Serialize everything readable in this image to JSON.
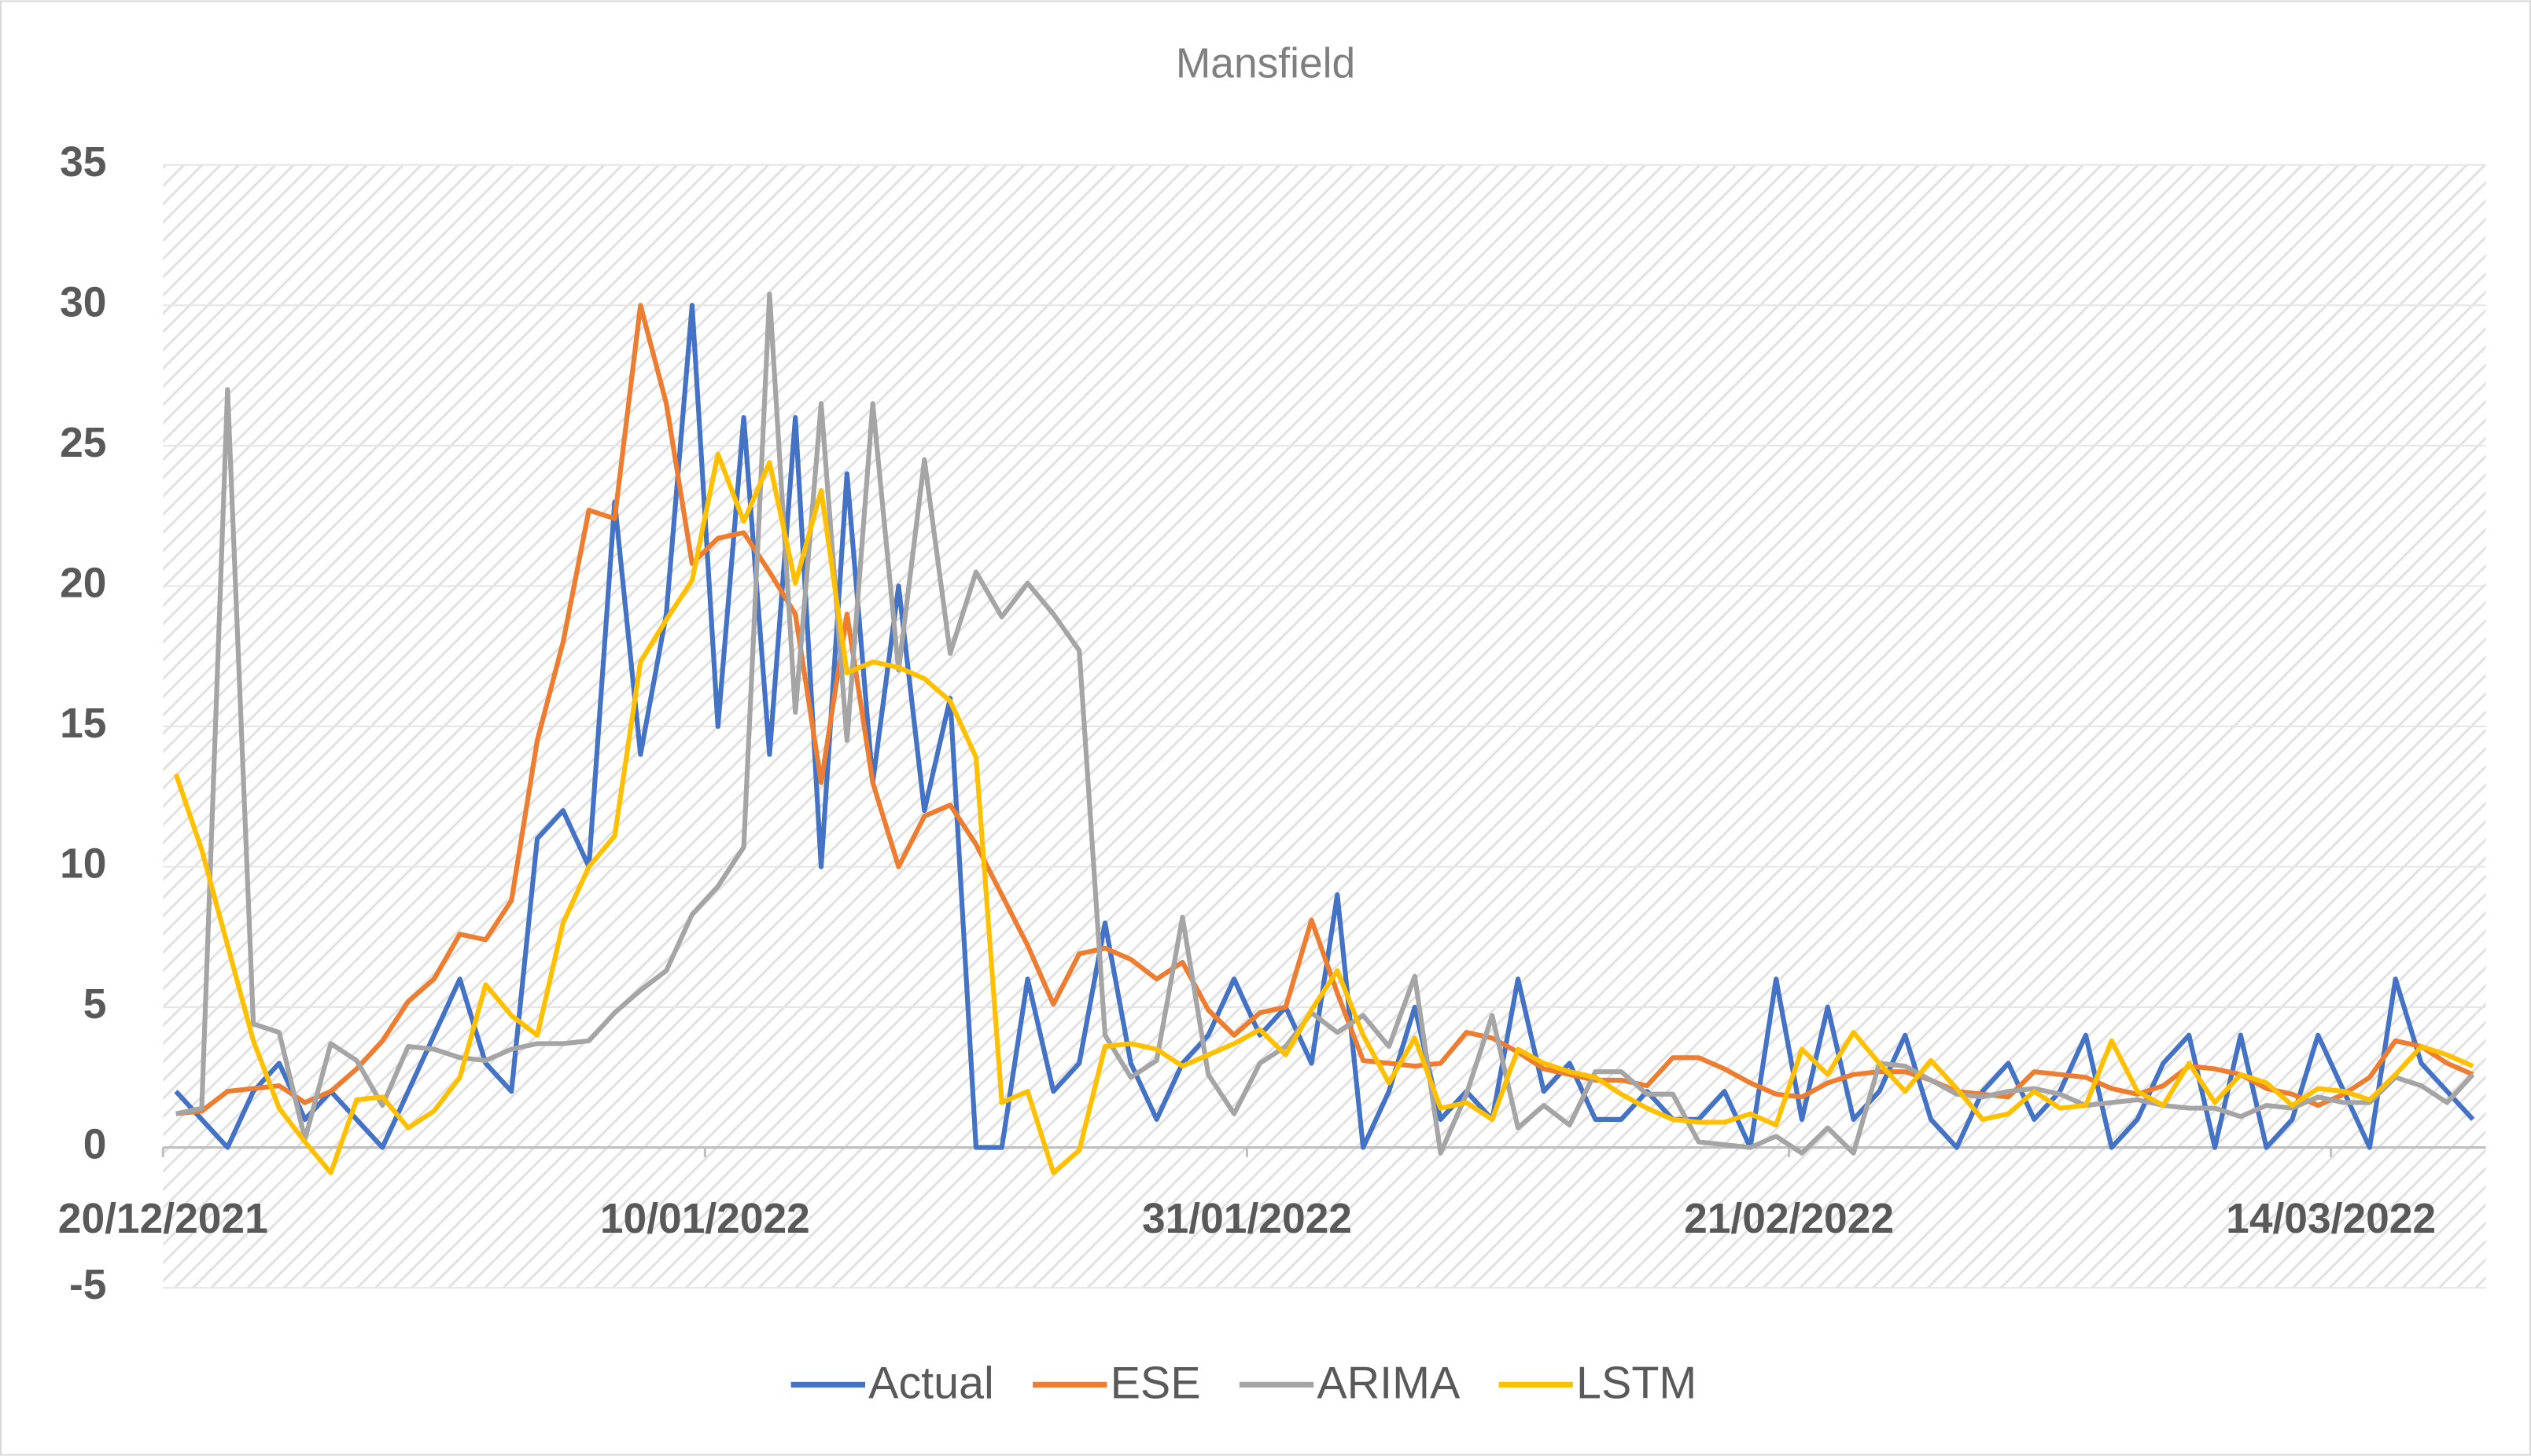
{
  "chart_data": {
    "type": "line",
    "title": "Mansfield",
    "categories": [
      "20/12/2021",
      null,
      null,
      null,
      null,
      null,
      null,
      null,
      null,
      null,
      null,
      null,
      null,
      null,
      null,
      null,
      null,
      null,
      null,
      null,
      null,
      "10/01/2022",
      null,
      null,
      null,
      null,
      null,
      null,
      null,
      null,
      null,
      null,
      null,
      null,
      null,
      null,
      null,
      null,
      null,
      null,
      null,
      null,
      "31/01/2022",
      null,
      null,
      null,
      null,
      null,
      null,
      null,
      null,
      null,
      null,
      null,
      null,
      null,
      null,
      null,
      null,
      null,
      null,
      null,
      null,
      "21/02/2022",
      null,
      null,
      null,
      null,
      null,
      null,
      null,
      null,
      null,
      null,
      null,
      null,
      null,
      null,
      null,
      null,
      null,
      null,
      null,
      null,
      "14/03/2022",
      null,
      null,
      null,
      null,
      null
    ],
    "series": [
      {
        "name": "Actual",
        "color": "#4472c4",
        "values": [
          2,
          1,
          0,
          2,
          3,
          1,
          2,
          1,
          0,
          2,
          4,
          6,
          3,
          2,
          11,
          12,
          10,
          23,
          14,
          19,
          30,
          15,
          26,
          14,
          26,
          10,
          24,
          13,
          20,
          12,
          16,
          0,
          0,
          6,
          2,
          3,
          8,
          3,
          1,
          3,
          4,
          6,
          4,
          5,
          3,
          9,
          0,
          2,
          5,
          1,
          2,
          1,
          6,
          2,
          3,
          1,
          1,
          2,
          1,
          1,
          2,
          0,
          6,
          1,
          5,
          1,
          2,
          4,
          1,
          0,
          2,
          3,
          1,
          2,
          4,
          0,
          1,
          3,
          4,
          0,
          4,
          0,
          1,
          4,
          2,
          0,
          6,
          3,
          2,
          1
        ]
      },
      {
        "name": "ESE",
        "color": "#ed7d31",
        "values": [
          1.2,
          1.3,
          2,
          2.1,
          2.2,
          1.6,
          2,
          2.8,
          3.8,
          5.2,
          6,
          7.6,
          7.4,
          8.8,
          14.5,
          18,
          22.7,
          22.4,
          30,
          26.5,
          20.8,
          21.7,
          21.9,
          20.5,
          19,
          13,
          19,
          13,
          10,
          11.8,
          12.2,
          10.8,
          9,
          7.2,
          5.1,
          6.9,
          7.1,
          6.7,
          6,
          6.6,
          4.9,
          4,
          4.8,
          5,
          8.1,
          5.5,
          3.1,
          3,
          2.9,
          3,
          4.1,
          3.9,
          3.4,
          2.8,
          2.6,
          2.4,
          2.4,
          2.2,
          3.2,
          3.2,
          2.8,
          2.3,
          1.9,
          1.8,
          2.3,
          2.6,
          2.7,
          2.7,
          2.4,
          2,
          1.9,
          1.8,
          2.7,
          2.6,
          2.5,
          2.1,
          1.9,
          2.2,
          2.9,
          2.8,
          2.6,
          2.1,
          1.9,
          1.5,
          1.9,
          2.5,
          3.8,
          3.6,
          3,
          2.6
        ]
      },
      {
        "name": "ARIMA",
        "color": "#a5a5a5",
        "values": [
          1.2,
          1.4,
          27,
          4.4,
          4.1,
          0.3,
          3.7,
          3.1,
          1.5,
          3.6,
          3.5,
          3.2,
          3.1,
          3.5,
          3.7,
          3.7,
          3.8,
          4.8,
          5.6,
          6.3,
          8.3,
          9.3,
          10.7,
          30.4,
          15.5,
          26.5,
          14.5,
          26.5,
          17,
          24.5,
          17.6,
          20.5,
          18.9,
          20.1,
          19,
          17.7,
          4,
          2.5,
          3.1,
          8.2,
          2.6,
          1.2,
          3,
          3.6,
          4.8,
          4.1,
          4.7,
          3.6,
          6.1,
          -0.2,
          1.9,
          4.7,
          0.7,
          1.5,
          0.8,
          2.7,
          2.7,
          1.9,
          1.9,
          0.2,
          0.1,
          0,
          0.4,
          -0.2,
          0.7,
          -0.2,
          3,
          2.9,
          2.4,
          1.9,
          1.8,
          2,
          2.1,
          1.9,
          1.5,
          1.6,
          1.7,
          1.5,
          1.4,
          1.4,
          1.1,
          1.5,
          1.4,
          1.8,
          1.6,
          1.6,
          2.5,
          2.2,
          1.6,
          2.6
        ]
      },
      {
        "name": "LSTM",
        "color": "#ffc000",
        "values": [
          13.3,
          10.6,
          7.2,
          3.8,
          1.4,
          0.2,
          -0.9,
          1.7,
          1.8,
          0.7,
          1.3,
          2.5,
          5.8,
          4.7,
          4,
          8,
          10,
          11.1,
          17.3,
          18.8,
          20.2,
          24.7,
          22.3,
          24.4,
          20.1,
          23.4,
          16.9,
          17.3,
          17.1,
          16.7,
          15.9,
          13.9,
          1.6,
          2,
          -0.9,
          -0.1,
          3.6,
          3.7,
          3.5,
          2.9,
          3.3,
          3.7,
          4.2,
          3.3,
          4.9,
          6.3,
          4,
          2.3,
          3.9,
          1.4,
          1.6,
          1,
          3.5,
          3,
          2.7,
          2.5,
          1.9,
          1.4,
          1,
          0.9,
          0.9,
          1.2,
          0.8,
          3.5,
          2.6,
          4.1,
          3,
          2,
          3.1,
          2.1,
          1,
          1.2,
          2,
          1.4,
          1.5,
          3.8,
          2,
          1.5,
          3,
          1.6,
          2.6,
          2.3,
          1.5,
          2.1,
          2,
          1.7,
          2.6,
          3.6,
          3.3,
          2.9
        ]
      }
    ],
    "ylim": [
      -5,
      35
    ],
    "yticks": [
      -5,
      0,
      5,
      10,
      15,
      20,
      25,
      30,
      35
    ],
    "grid": true,
    "legend": "bottom"
  }
}
